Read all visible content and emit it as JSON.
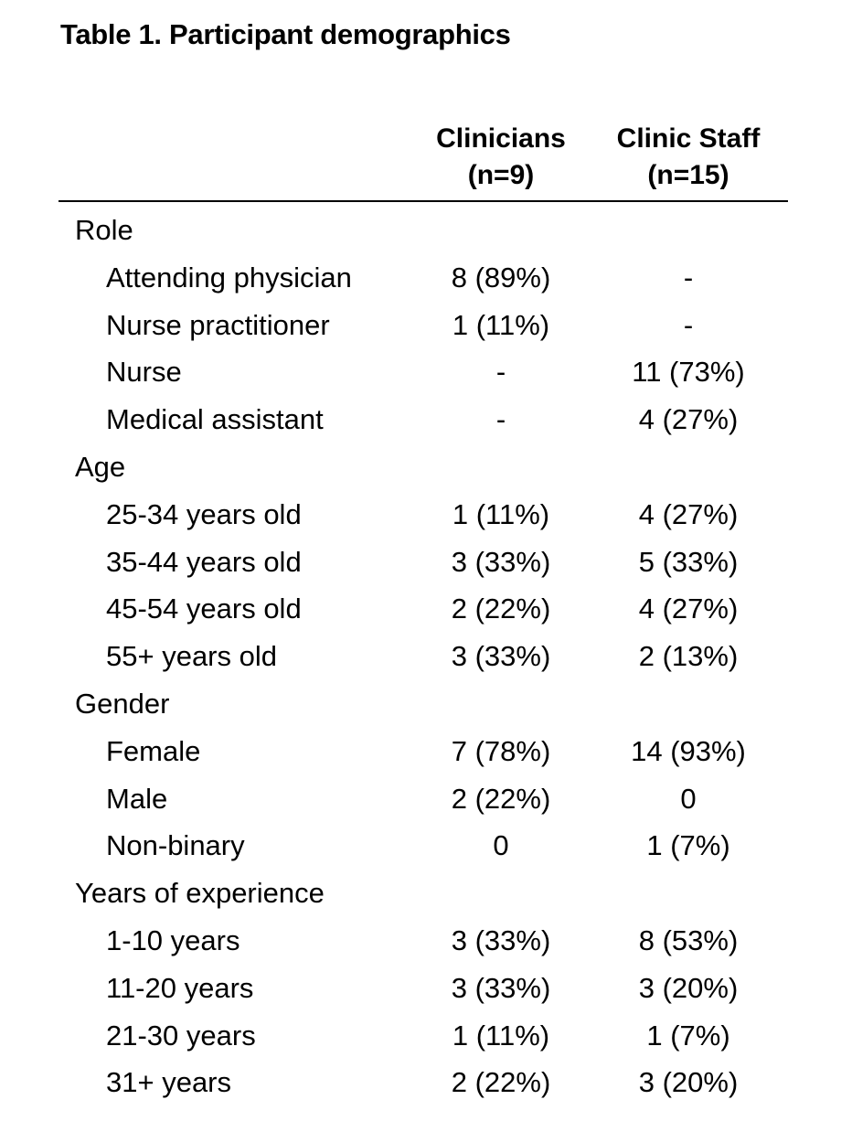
{
  "title": "Table 1. Participant demographics",
  "columns": [
    {
      "line1": "Clinicians",
      "line2": "(n=9)"
    },
    {
      "line1": "Clinic Staff",
      "line2": "(n=15)"
    }
  ],
  "rows": [
    {
      "label": "Role",
      "category": true,
      "v1": "",
      "v2": ""
    },
    {
      "label": "Attending physician",
      "category": false,
      "v1": "8 (89%)",
      "v2": "-"
    },
    {
      "label": "Nurse practitioner",
      "category": false,
      "v1": "1 (11%)",
      "v2": "-"
    },
    {
      "label": "Nurse",
      "category": false,
      "v1": "-",
      "v2": "11 (73%)"
    },
    {
      "label": "Medical assistant",
      "category": false,
      "v1": "-",
      "v2": "4 (27%)"
    },
    {
      "label": "Age",
      "category": true,
      "v1": "",
      "v2": ""
    },
    {
      "label": "25-34 years old",
      "category": false,
      "v1": "1 (11%)",
      "v2": "4 (27%)"
    },
    {
      "label": "35-44 years old",
      "category": false,
      "v1": "3 (33%)",
      "v2": "5 (33%)"
    },
    {
      "label": "45-54 years old",
      "category": false,
      "v1": "2 (22%)",
      "v2": "4 (27%)"
    },
    {
      "label": "55+ years old",
      "category": false,
      "v1": "3 (33%)",
      "v2": "2 (13%)"
    },
    {
      "label": "Gender",
      "category": true,
      "v1": "",
      "v2": ""
    },
    {
      "label": "Female",
      "category": false,
      "v1": "7 (78%)",
      "v2": "14 (93%)"
    },
    {
      "label": "Male",
      "category": false,
      "v1": "2 (22%)",
      "v2": "0"
    },
    {
      "label": "Non-binary",
      "category": false,
      "v1": "0",
      "v2": "1 (7%)"
    },
    {
      "label": "Years of experience",
      "category": true,
      "v1": "",
      "v2": ""
    },
    {
      "label": "1-10 years",
      "category": false,
      "v1": "3 (33%)",
      "v2": "8 (53%)"
    },
    {
      "label": "11-20 years",
      "category": false,
      "v1": "3 (33%)",
      "v2": "3 (20%)"
    },
    {
      "label": "21-30 years",
      "category": false,
      "v1": "1 (11%)",
      "v2": "1 (7%)"
    },
    {
      "label": "31+ years",
      "category": false,
      "v1": "2 (22%)",
      "v2": "3 (20%)"
    }
  ]
}
